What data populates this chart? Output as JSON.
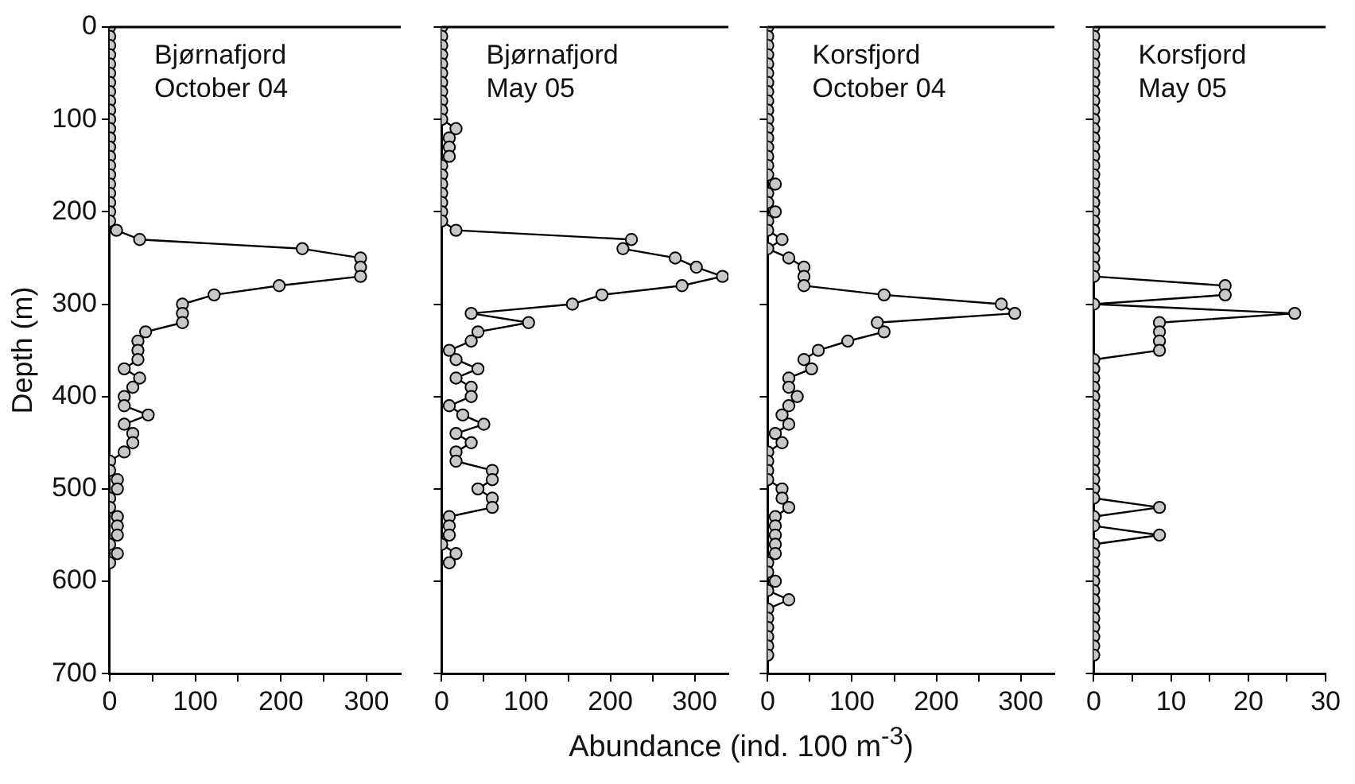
{
  "chart_data": [
    {
      "type": "line",
      "title": "Bjørnafjord",
      "subtitle": "October 04",
      "ylabel": "Depth (m)",
      "xlabel": "Abundance (ind. 100 m$^{-3}$)",
      "marker": "circle",
      "xlim": [
        0,
        340
      ],
      "xticks": [
        0,
        {
          "value": 50,
          "label": null
        },
        100,
        {
          "value": 150,
          "label": null
        },
        200,
        {
          "value": 250,
          "label": null
        },
        300
      ],
      "ylim": [
        700,
        0
      ],
      "yticks": [
        0,
        100,
        200,
        300,
        400,
        500,
        600,
        700
      ],
      "series": [
        {
          "color": "#c8c8c8",
          "x": [
            0,
            0,
            0,
            0,
            0,
            0,
            0,
            0,
            0,
            0,
            0,
            0,
            0,
            0,
            0,
            0,
            0,
            0,
            0,
            0,
            0,
            0,
            8,
            35,
            225,
            293,
            293,
            293,
            198,
            122,
            85,
            85,
            85,
            42,
            33,
            33,
            33,
            17,
            35,
            27,
            17,
            17,
            45,
            17,
            27,
            27,
            17,
            0,
            0,
            9,
            9,
            0,
            0,
            9,
            9,
            9,
            0,
            9,
            0
          ],
          "values": [
            0,
            10,
            20,
            30,
            40,
            50,
            60,
            70,
            80,
            90,
            100,
            110,
            120,
            130,
            140,
            150,
            160,
            170,
            180,
            190,
            200,
            210,
            220,
            230,
            240,
            250,
            260,
            270,
            280,
            290,
            300,
            310,
            320,
            330,
            340,
            350,
            360,
            370,
            380,
            390,
            400,
            410,
            420,
            430,
            440,
            450,
            460,
            470,
            480,
            490,
            500,
            510,
            520,
            530,
            540,
            550,
            560,
            570,
            580
          ]
        }
      ]
    },
    {
      "type": "line",
      "title": "Bjørnafjord",
      "subtitle": "May 05",
      "marker": "circle",
      "tick_labels": "x",
      "xlim": [
        0,
        340
      ],
      "xticks": [
        0,
        {
          "value": 50,
          "label": null
        },
        100,
        {
          "value": 150,
          "label": null
        },
        200,
        {
          "value": 250,
          "label": null
        },
        300
      ],
      "ylim": [
        700,
        0
      ],
      "yticks": [
        0,
        100,
        200,
        300,
        400,
        500,
        600,
        700
      ],
      "series": [
        {
          "color": "#c8c8c8",
          "x": [
            0,
            0,
            0,
            0,
            0,
            0,
            0,
            0,
            0,
            0,
            0,
            17,
            9,
            9,
            9,
            0,
            0,
            0,
            0,
            0,
            0,
            0,
            17,
            225,
            215,
            277,
            302,
            333,
            285,
            190,
            155,
            35,
            103,
            43,
            35,
            9,
            17,
            43,
            17,
            35,
            35,
            9,
            25,
            50,
            17,
            35,
            17,
            17,
            60,
            60,
            43,
            60,
            60,
            9,
            9,
            9,
            0,
            17,
            9
          ],
          "values": [
            0,
            10,
            20,
            30,
            40,
            50,
            60,
            70,
            80,
            90,
            100,
            110,
            120,
            130,
            140,
            150,
            160,
            170,
            180,
            190,
            200,
            210,
            220,
            230,
            240,
            250,
            260,
            270,
            280,
            290,
            300,
            310,
            320,
            330,
            340,
            350,
            360,
            370,
            380,
            390,
            400,
            410,
            420,
            430,
            440,
            450,
            460,
            470,
            480,
            490,
            500,
            510,
            520,
            530,
            540,
            550,
            560,
            570,
            580
          ]
        }
      ]
    },
    {
      "type": "line",
      "title": "Korsfjord",
      "subtitle": "October 04",
      "marker": "circle",
      "tick_labels": "x",
      "xlim": [
        0,
        340
      ],
      "xticks": [
        0,
        {
          "value": 50,
          "label": null
        },
        100,
        {
          "value": 150,
          "label": null
        },
        200,
        {
          "value": 250,
          "label": null
        },
        300
      ],
      "ylim": [
        700,
        0
      ],
      "yticks": [
        0,
        100,
        200,
        300,
        400,
        500,
        600,
        700
      ],
      "series": [
        {
          "color": "#c8c8c8",
          "x": [
            0,
            0,
            0,
            0,
            0,
            0,
            0,
            0,
            0,
            0,
            0,
            0,
            0,
            0,
            0,
            0,
            0,
            9,
            0,
            0,
            9,
            0,
            0,
            17,
            0,
            25,
            43,
            43,
            43,
            138,
            277,
            293,
            130,
            138,
            95,
            60,
            43,
            52,
            25,
            25,
            35,
            25,
            17,
            25,
            9,
            17,
            0,
            0,
            0,
            0,
            17,
            17,
            25,
            9,
            9,
            9,
            9,
            9,
            0,
            0,
            9,
            0,
            25,
            0,
            0,
            0,
            0,
            0,
            0
          ],
          "values": [
            0,
            10,
            20,
            30,
            40,
            50,
            60,
            70,
            80,
            90,
            100,
            110,
            120,
            130,
            140,
            150,
            160,
            170,
            180,
            190,
            200,
            210,
            220,
            230,
            240,
            250,
            260,
            270,
            280,
            290,
            300,
            310,
            320,
            330,
            340,
            350,
            360,
            370,
            380,
            390,
            400,
            410,
            420,
            430,
            440,
            450,
            460,
            470,
            480,
            490,
            500,
            510,
            520,
            530,
            540,
            550,
            560,
            570,
            580,
            590,
            600,
            610,
            620,
            630,
            640,
            650,
            660,
            670,
            680
          ]
        }
      ]
    },
    {
      "type": "line",
      "title": "Korsfjord",
      "subtitle": "May 05",
      "marker": "circle",
      "tick_labels": "x",
      "xlim": [
        0,
        30
      ],
      "xticks": [
        0,
        {
          "value": 5,
          "label": null
        },
        10,
        {
          "value": 15,
          "label": null
        },
        20,
        {
          "value": 25,
          "label": null
        },
        30
      ],
      "ylim": [
        700,
        0
      ],
      "yticks": [
        0,
        100,
        200,
        300,
        400,
        500,
        600,
        700
      ],
      "series": [
        {
          "color": "#c8c8c8",
          "x": [
            0,
            0,
            0,
            0,
            0,
            0,
            0,
            0,
            0,
            0,
            0,
            0,
            0,
            0,
            0,
            0,
            0,
            0,
            0,
            0,
            0,
            0,
            0,
            0,
            0,
            0,
            0,
            0,
            17,
            17,
            0,
            26,
            8.5,
            8.5,
            8.5,
            8.5,
            0,
            0,
            0,
            0,
            0,
            0,
            0,
            0,
            0,
            0,
            0,
            0,
            0,
            0,
            0,
            0,
            8.5,
            0,
            0,
            8.5,
            0,
            0,
            0,
            0,
            0,
            0,
            0,
            0,
            0,
            0,
            0,
            0,
            0
          ],
          "values": [
            0,
            10,
            20,
            30,
            40,
            50,
            60,
            70,
            80,
            90,
            100,
            110,
            120,
            130,
            140,
            150,
            160,
            170,
            180,
            190,
            200,
            210,
            220,
            230,
            240,
            250,
            260,
            270,
            280,
            290,
            300,
            310,
            320,
            330,
            340,
            350,
            360,
            370,
            380,
            390,
            400,
            410,
            420,
            430,
            440,
            450,
            460,
            470,
            480,
            490,
            500,
            510,
            520,
            530,
            540,
            550,
            560,
            570,
            580,
            590,
            600,
            610,
            620,
            630,
            640,
            650,
            660,
            670,
            680
          ]
        }
      ]
    }
  ]
}
